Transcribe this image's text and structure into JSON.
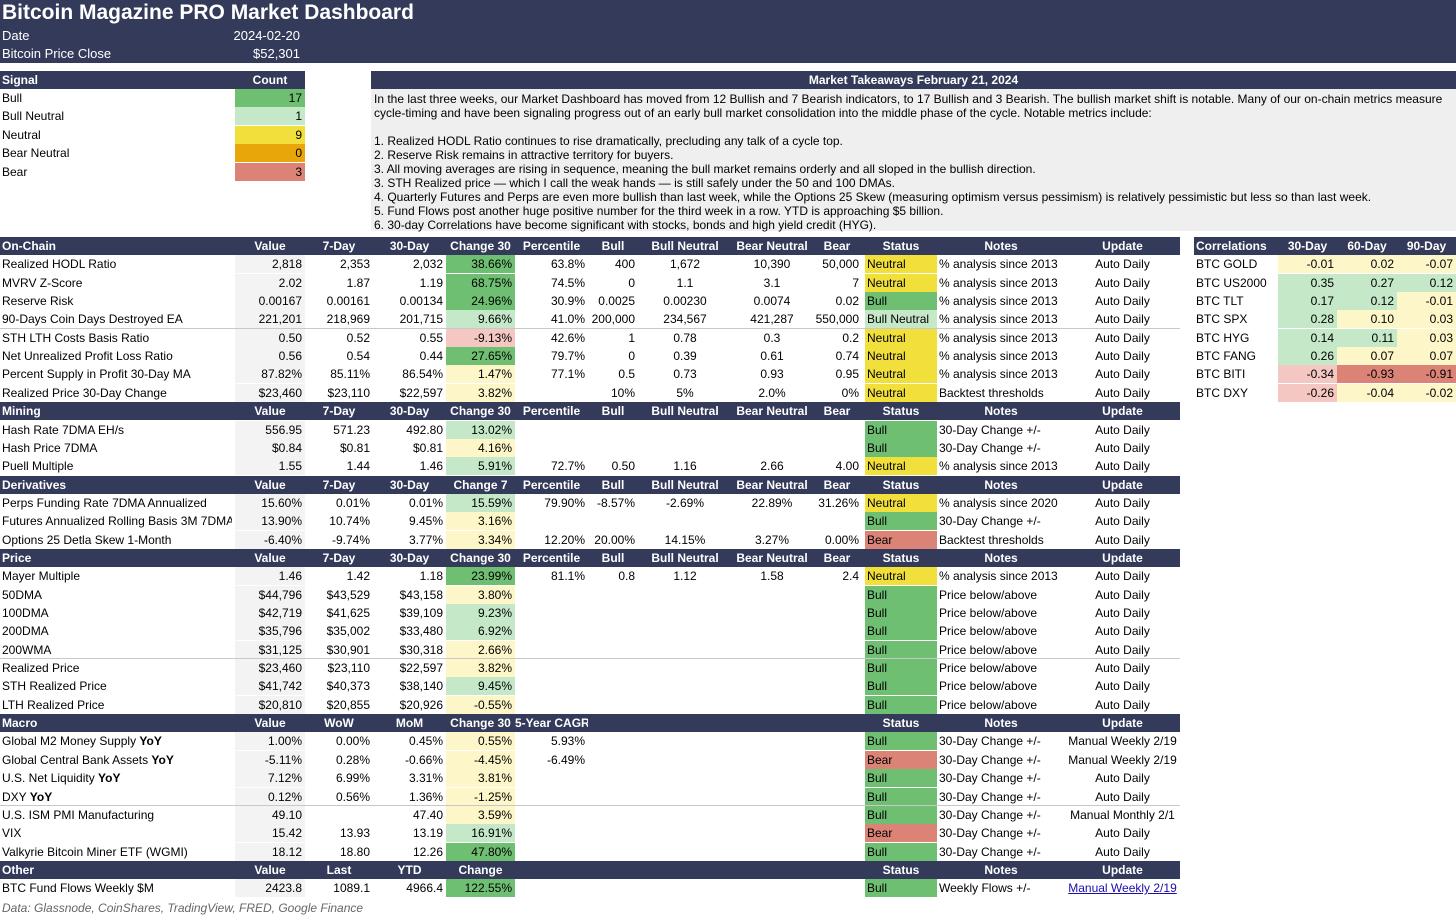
{
  "header": {
    "title": "Bitcoin Magazine PRO Market Dashboard",
    "date_label": "Date",
    "date_value": "2024-02-20",
    "price_label": "Bitcoin Price Close",
    "price_value": "$52,301"
  },
  "signals": {
    "col_signal": "Signal",
    "col_count": "Count",
    "rows": [
      {
        "label": "Bull",
        "count": "17",
        "color": "#6fbf73"
      },
      {
        "label": "Bull Neutral",
        "count": "1",
        "color": "#c5e8c9"
      },
      {
        "label": "Neutral",
        "count": "9",
        "color": "#f1df3c"
      },
      {
        "label": "Bear Neutral",
        "count": "0",
        "color": "#e8a60b"
      },
      {
        "label": "Bear",
        "count": "3",
        "color": "#dc8377"
      }
    ]
  },
  "takeaways": {
    "title": "Market Takeaways February 21, 2024",
    "body": "In the last three weeks, our Market Dashboard has moved from 12 Bullish and 7 Bearish indicators, to 17 Bullish and 3 Bearish. The bullish market shift is notable. Many of our on-chain metrics measure cycle-timing and have been signaling progress out of an early bull market consolidation into the middle phase of the cycle. Notable metrics include:\n\n1. Realized HODL Ratio continues to rise dramatically, precluding any talk of a cycle top.\n2. Reserve Risk remains in attractive territory for buyers.\n3. All moving averages are rising in sequence, meaning the bull market remains orderly and all sloped in the bullish direction.\n3. STH Realized price — which I call the weak hands — is still safely under the 50 and 100 DMAs.\n4. Quarterly Futures and Perps are even more bullish than last week, while the Options 25 Skew (measuring optimism versus pessimism) is relatively pessimistic but less so than last week.\n5. Fund Flows post another huge positive number for the third week in a row. YTD is approaching $5 billion.\n6. 30-day Correlations have become significant with stocks, bonds and high yield credit (HYG)."
  },
  "colors": {
    "navy": "#343b5a",
    "bull": "#6fbf73",
    "bull_neutral": "#c5e8c9",
    "neutral": "#f1df3c",
    "bear": "#dc8377",
    "chg_dark_green": "#6fbf73",
    "chg_light_green": "#c5e8c9",
    "chg_yellow": "#fdf6c9",
    "chg_pink": "#f4c7c3"
  },
  "sections": [
    {
      "name": "On-Chain",
      "headers": [
        "On-Chain",
        "Value",
        "7-Day",
        "30-Day",
        "Change 30",
        "Percentile",
        "Bull",
        "Bull Neutral",
        "Bear Neutral",
        "Bear",
        "Status",
        "Notes",
        "Update"
      ],
      "rows": [
        {
          "cells": [
            "Realized HODL Ratio",
            "2,818",
            "2,353",
            "2,032",
            "38.66%",
            "63.8%",
            "400",
            "1,672",
            "10,390",
            "50,000",
            "Neutral",
            "% analysis since 2013",
            "Auto Daily"
          ],
          "chg": "#6fbf73",
          "status": "#f1df3c"
        },
        {
          "cells": [
            "MVRV Z-Score",
            "2.02",
            "1.87",
            "1.19",
            "68.75%",
            "74.5%",
            "0",
            "1.1",
            "3.1",
            "7",
            "Neutral",
            "% analysis since 2013",
            "Auto Daily"
          ],
          "chg": "#6fbf73",
          "status": "#f1df3c"
        },
        {
          "cells": [
            "Reserve Risk",
            "0.00167",
            "0.00161",
            "0.00134",
            "24.96%",
            "30.9%",
            "0.0025",
            "0.00230",
            "0.0074",
            "0.02",
            "Bull",
            "% analysis since 2013",
            "Auto Daily"
          ],
          "chg": "#6fbf73",
          "status": "#6fbf73"
        },
        {
          "cells": [
            "90-Days Coin Days Destroyed EA",
            "221,201",
            "218,969",
            "201,715",
            "9.66%",
            "41.0%",
            "200,000",
            "234,567",
            "421,287",
            "550,000",
            "Bull Neutral",
            "% analysis since 2013",
            "Auto Daily"
          ],
          "chg": "#c5e8c9",
          "status": "#c5e8c9",
          "sep": true
        },
        {
          "cells": [
            "STH LTH Costs Basis Ratio",
            "0.50",
            "0.52",
            "0.55",
            "-9.13%",
            "42.6%",
            "1",
            "0.78",
            "0.3",
            "0.2",
            "Neutral",
            "% analysis since 2013",
            "Auto Daily"
          ],
          "chg": "#f4c7c3",
          "status": "#f1df3c"
        },
        {
          "cells": [
            "Net Unrealized Profit Loss Ratio",
            "0.56",
            "0.54",
            "0.44",
            "27.65%",
            "79.7%",
            "0",
            "0.39",
            "0.61",
            "0.74",
            "Neutral",
            "% analysis since 2013",
            "Auto Daily"
          ],
          "chg": "#6fbf73",
          "status": "#f1df3c"
        },
        {
          "cells": [
            "Percent Supply in Profit 30-Day MA",
            "87.82%",
            "85.11%",
            "86.54%",
            "1.47%",
            "77.1%",
            "0.5",
            "0.73",
            "0.93",
            "0.95",
            "Neutral",
            "% analysis since 2013",
            "Auto Daily"
          ],
          "chg": "#fdf6c9",
          "status": "#f1df3c"
        },
        {
          "cells": [
            "Realized Price 30-Day Change",
            "$23,460",
            "$23,110",
            "$22,597",
            "3.82%",
            "",
            "10%",
            "5%",
            "2.0%",
            "0%",
            "Neutral",
            "Backtest thresholds",
            "Auto Daily"
          ],
          "chg": "#fdf6c9",
          "status": "#f1df3c"
        }
      ]
    },
    {
      "name": "Mining",
      "headers": [
        "Mining",
        "Value",
        "7-Day",
        "30-Day",
        "Change 30",
        "Percentile",
        "Bull",
        "Bull Neutral",
        "Bear Neutral",
        "Bear",
        "Status",
        "Notes",
        "Update"
      ],
      "rows": [
        {
          "cells": [
            "Hash Rate 7DMA EH/s",
            "556.95",
            "571.23",
            "492.80",
            "13.02%",
            "",
            "",
            "",
            "",
            "",
            "Bull",
            "30-Day Change +/-",
            "Auto Daily"
          ],
          "chg": "#c5e8c9",
          "status": "#6fbf73"
        },
        {
          "cells": [
            "Hash Price 7DMA",
            "$0.84",
            "$0.81",
            "$0.81",
            "4.16%",
            "",
            "",
            "",
            "",
            "",
            "Bull",
            "30-Day Change +/-",
            "Auto Daily"
          ],
          "chg": "#fdf6c9",
          "status": "#6fbf73"
        },
        {
          "cells": [
            "Puell Multiple",
            "1.55",
            "1.44",
            "1.46",
            "5.91%",
            "72.7%",
            "0.50",
            "1.16",
            "2.66",
            "4.00",
            "Neutral",
            "% analysis since 2013",
            "Auto Daily"
          ],
          "chg": "#c5e8c9",
          "status": "#f1df3c"
        }
      ]
    },
    {
      "name": "Derivatives",
      "headers": [
        "Derivatives",
        "Value",
        "7-Day",
        "30-Day",
        "Change 7",
        "Percentile",
        "Bull",
        "Bull Neutral",
        "Bear Neutral",
        "Bear",
        "Status",
        "Notes",
        "Update"
      ],
      "rows": [
        {
          "cells": [
            "Perps Funding Rate 7DMA Annualized",
            "15.60%",
            "0.01%",
            "0.01%",
            "15.59%",
            "79.90%",
            "-8.57%",
            "-2.69%",
            "22.89%",
            "31.26%",
            "Neutral",
            "% analysis since 2020",
            "Auto Daily"
          ],
          "chg": "#c5e8c9",
          "status": "#f1df3c"
        },
        {
          "cells": [
            "Futures Annualized Rolling Basis 3M 7DMA",
            "13.90%",
            "10.74%",
            "9.45%",
            "3.16%",
            "",
            "",
            "",
            "",
            "",
            "Bull",
            "30-Day Change +/-",
            "Auto Daily"
          ],
          "chg": "#fdf6c9",
          "status": "#6fbf73"
        },
        {
          "cells": [
            "Options 25 Detla Skew 1-Month",
            "-6.40%",
            "-9.74%",
            "3.77%",
            "3.34%",
            "12.20%",
            "20.00%",
            "14.15%",
            "3.27%",
            "0.00%",
            "Bear",
            "Backtest thresholds",
            "Auto Daily"
          ],
          "chg": "#fdf6c9",
          "status": "#dc8377"
        }
      ]
    },
    {
      "name": "Price",
      "headers": [
        "Price",
        "Value",
        "7-Day",
        "30-Day",
        "Change 30",
        "Percentile",
        "Bull",
        "Bull Neutral",
        "Bear Neutral",
        "Bear",
        "Status",
        "Notes",
        "Update"
      ],
      "rows": [
        {
          "cells": [
            "Mayer Multiple",
            "1.46",
            "1.42",
            "1.18",
            "23.99%",
            "81.1%",
            "0.8",
            "1.12",
            "1.58",
            "2.4",
            "Neutral",
            "% analysis since 2013",
            "Auto Daily"
          ],
          "chg": "#6fbf73",
          "status": "#f1df3c"
        },
        {
          "cells": [
            "50DMA",
            "$44,796",
            "$43,529",
            "$43,158",
            "3.80%",
            "",
            "",
            "",
            "",
            "",
            "Bull",
            "Price below/above",
            "Auto Daily"
          ],
          "chg": "#fdf6c9",
          "status": "#6fbf73"
        },
        {
          "cells": [
            "100DMA",
            "$42,719",
            "$41,625",
            "$39,109",
            "9.23%",
            "",
            "",
            "",
            "",
            "",
            "Bull",
            "Price below/above",
            "Auto Daily"
          ],
          "chg": "#c5e8c9",
          "status": "#6fbf73"
        },
        {
          "cells": [
            "200DMA",
            "$35,796",
            "$35,002",
            "$33,480",
            "6.92%",
            "",
            "",
            "",
            "",
            "",
            "Bull",
            "Price below/above",
            "Auto Daily"
          ],
          "chg": "#c5e8c9",
          "status": "#6fbf73"
        },
        {
          "cells": [
            "200WMA",
            "$31,125",
            "$30,901",
            "$30,318",
            "2.66%",
            "",
            "",
            "",
            "",
            "",
            "Bull",
            "Price below/above",
            "Auto Daily"
          ],
          "chg": "#fdf6c9",
          "status": "#6fbf73",
          "sep": true
        },
        {
          "cells": [
            "Realized Price",
            "$23,460",
            "$23,110",
            "$22,597",
            "3.82%",
            "",
            "",
            "",
            "",
            "",
            "Bull",
            "Price below/above",
            "Auto Daily"
          ],
          "chg": "#fdf6c9",
          "status": "#6fbf73"
        },
        {
          "cells": [
            "STH Realized Price",
            "$41,742",
            "$40,373",
            "$38,140",
            "9.45%",
            "",
            "",
            "",
            "",
            "",
            "Bull",
            "Price below/above",
            "Auto Daily"
          ],
          "chg": "#c5e8c9",
          "status": "#6fbf73"
        },
        {
          "cells": [
            "LTH Realized Price",
            "$20,810",
            "$20,855",
            "$20,926",
            "-0.55%",
            "",
            "",
            "",
            "",
            "",
            "Bull",
            "Price below/above",
            "Auto Daily"
          ],
          "chg": "#fdf6c9",
          "status": "#6fbf73"
        }
      ]
    },
    {
      "name": "Macro",
      "headers": [
        "Macro",
        "Value",
        "WoW",
        "MoM",
        "Change 30",
        "5-Year CAGR",
        "",
        "",
        "",
        "",
        "Status",
        "Notes",
        "Update"
      ],
      "rows": [
        {
          "cells": [
            "Global M2 Money Supply YoY",
            "1.00%",
            "0.00%",
            "0.45%",
            "0.55%",
            "5.93%",
            "",
            "",
            "",
            "",
            "Bull",
            "30-Day Change +/-",
            "Manual Weekly 2/19"
          ],
          "chg": "#fdf6c9",
          "status": "#6fbf73"
        },
        {
          "cells": [
            "Global Central Bank Assets YoY",
            "-5.11%",
            "0.28%",
            "-0.66%",
            "-4.45%",
            "-6.49%",
            "",
            "",
            "",
            "",
            "Bear",
            "30-Day Change +/-",
            "Manual Weekly 2/19"
          ],
          "chg": "#fdf6c9",
          "status": "#dc8377"
        },
        {
          "cells": [
            "U.S. Net Liquidity YoY",
            "7.12%",
            "6.99%",
            "3.31%",
            "3.81%",
            "",
            "",
            "",
            "",
            "",
            "Bull",
            "30-Day Change +/-",
            "Auto Daily"
          ],
          "chg": "#fdf6c9",
          "status": "#6fbf73"
        },
        {
          "cells": [
            "DXY YoY",
            "0.12%",
            "0.56%",
            "1.36%",
            "-1.25%",
            "",
            "",
            "",
            "",
            "",
            "Bull",
            "30-Day Change +/-",
            "Auto Daily"
          ],
          "chg": "#fdf6c9",
          "status": "#6fbf73",
          "sep": true
        },
        {
          "cells": [
            "U.S. ISM PMI Manufacturing",
            "49.10",
            "",
            "47.40",
            "3.59%",
            "",
            "",
            "",
            "",
            "",
            "Bull",
            "30-Day Change +/-",
            "Manual Monthly 2/1"
          ],
          "chg": "#fdf6c9",
          "status": "#6fbf73"
        },
        {
          "cells": [
            "VIX",
            "15.42",
            "13.93",
            "13.19",
            "16.91%",
            "",
            "",
            "",
            "",
            "",
            "Bear",
            "30-Day Change +/-",
            "Auto Daily"
          ],
          "chg": "#c5e8c9",
          "status": "#dc8377"
        },
        {
          "cells": [
            "Valkyrie Bitcoin Miner ETF (WGMI)",
            "18.12",
            "18.80",
            "12.26",
            "47.80%",
            "",
            "",
            "",
            "",
            "",
            "Bull",
            "30-Day Change +/-",
            "Auto Daily"
          ],
          "chg": "#6fbf73",
          "status": "#6fbf73"
        }
      ]
    },
    {
      "name": "Other",
      "headers": [
        "Other",
        "Value",
        "Last",
        "YTD",
        "Change",
        "",
        "",
        "",
        "",
        "",
        "Status",
        "Notes",
        "Update"
      ],
      "rows": [
        {
          "cells": [
            "BTC Fund Flows Weekly $M",
            "2423.8",
            "1089.1",
            "4966.4",
            "122.55%",
            "",
            "",
            "",
            "",
            "",
            "Bull",
            "Weekly Flows +/-",
            "Manual Weekly 2/19"
          ],
          "chg": "#6fbf73",
          "status": "#6fbf73",
          "link": true
        }
      ]
    }
  ],
  "correlations": {
    "headers": [
      "Correlations",
      "30-Day",
      "60-Day",
      "90-Day"
    ],
    "rows": [
      {
        "cells": [
          "BTC GOLD",
          "-0.01",
          "0.02",
          "-0.07"
        ],
        "colors": [
          "#fdf6c9",
          "#fdf6c9",
          "#fdf6c9"
        ]
      },
      {
        "cells": [
          "BTC US2000",
          "0.35",
          "0.27",
          "0.12"
        ],
        "colors": [
          "#c5e8c9",
          "#c5e8c9",
          "#c5e8c9"
        ]
      },
      {
        "cells": [
          "BTC TLT",
          "0.17",
          "0.12",
          "-0.01"
        ],
        "colors": [
          "#c5e8c9",
          "#c5e8c9",
          "#fdf6c9"
        ]
      },
      {
        "cells": [
          "BTC SPX",
          "0.28",
          "0.10",
          "0.03"
        ],
        "colors": [
          "#c5e8c9",
          "#fdf6c9",
          "#fdf6c9"
        ]
      },
      {
        "cells": [
          "BTC HYG",
          "0.14",
          "0.11",
          "0.03"
        ],
        "colors": [
          "#c5e8c9",
          "#c5e8c9",
          "#fdf6c9"
        ]
      },
      {
        "cells": [
          "BTC FANG",
          "0.26",
          "0.07",
          "0.07"
        ],
        "colors": [
          "#c5e8c9",
          "#fdf6c9",
          "#fdf6c9"
        ]
      },
      {
        "cells": [
          "BTC BITI",
          "-0.34",
          "-0.93",
          "-0.91"
        ],
        "colors": [
          "#f4c7c3",
          "#dc8377",
          "#dc8377"
        ]
      },
      {
        "cells": [
          "BTC DXY",
          "-0.26",
          "-0.04",
          "-0.02"
        ],
        "colors": [
          "#f4c7c3",
          "#fdf6c9",
          "#fdf6c9"
        ]
      }
    ]
  },
  "footer": "Data: Glassnode, CoinShares, TradingView, FRED, Google Finance"
}
